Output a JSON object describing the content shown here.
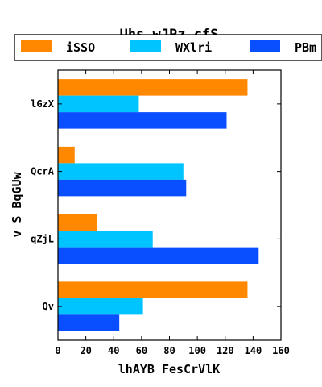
{
  "chart_data": {
    "type": "bar",
    "orientation": "horizontal",
    "title": "Uhs wJPz cfS",
    "xlabel": "lhAYB FesCrVlK",
    "ylabel": "v S BqGUw",
    "categories": [
      "Qv",
      "qZjL",
      "QcrA",
      "lGzX"
    ],
    "series": [
      {
        "name": "iSSO",
        "color": "#ff8800",
        "values": [
          136,
          28,
          12,
          136
        ]
      },
      {
        "name": "WXlri",
        "color": "#00c4ff",
        "values": [
          61,
          68,
          90,
          58
        ]
      },
      {
        "name": "PBm",
        "color": "#0a4fff",
        "values": [
          44,
          144,
          92,
          121
        ]
      }
    ],
    "xlim": [
      0,
      160
    ],
    "xticks": [
      0,
      20,
      40,
      60,
      80,
      100,
      120,
      140,
      160
    ],
    "grid": false,
    "legend_position": "top"
  }
}
